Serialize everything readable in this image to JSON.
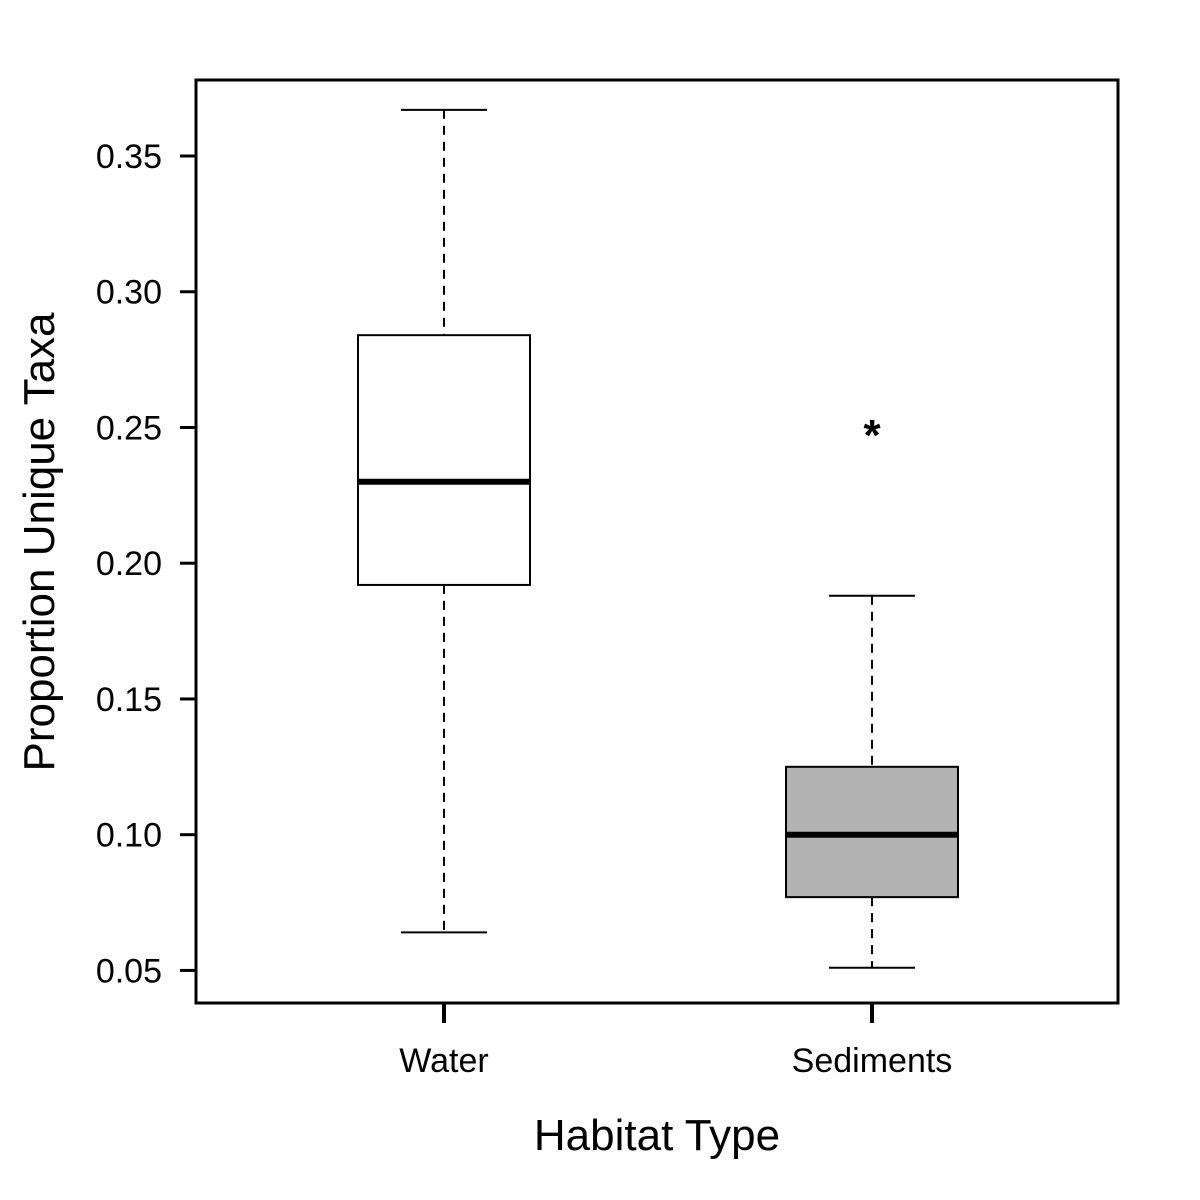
{
  "chart_data": {
    "type": "box",
    "title": "",
    "xlabel": "Habitat Type",
    "ylabel": "Proportion Unique Taxa",
    "ylim": [
      0.038,
      0.378
    ],
    "yticks": [
      0.05,
      0.1,
      0.15,
      0.2,
      0.25,
      0.3,
      0.35
    ],
    "ytick_labels": [
      "0.05",
      "0.10",
      "0.15",
      "0.20",
      "0.25",
      "0.30",
      "0.35"
    ],
    "categories": [
      "Water",
      "Sediments"
    ],
    "boxes": [
      {
        "category": "Water",
        "whisker_low": 0.064,
        "q1": 0.192,
        "median": 0.23,
        "q3": 0.284,
        "whisker_high": 0.367,
        "fill": "#ffffff",
        "outliers": []
      },
      {
        "category": "Sediments",
        "whisker_low": 0.051,
        "q1": 0.077,
        "median": 0.1,
        "q3": 0.125,
        "whisker_high": 0.188,
        "fill": "#b3b3b3",
        "outliers": [
          0.249
        ]
      }
    ],
    "outlier_symbol": "*",
    "grid": false,
    "legend": "none"
  }
}
